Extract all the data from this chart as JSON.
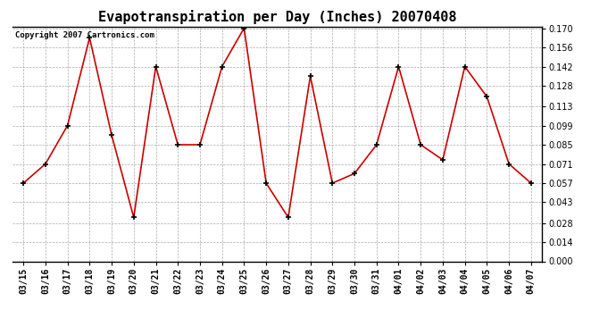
{
  "title": "Evapotranspiration per Day (Inches) 20070408",
  "copyright_text": "Copyright 2007 Cartronics.com",
  "dates": [
    "03/15",
    "03/16",
    "03/17",
    "03/18",
    "03/19",
    "03/20",
    "03/21",
    "03/22",
    "03/23",
    "03/24",
    "03/25",
    "03/26",
    "03/27",
    "03/28",
    "03/29",
    "03/30",
    "03/31",
    "04/01",
    "04/02",
    "04/03",
    "04/04",
    "04/05",
    "04/06",
    "04/07"
  ],
  "values": [
    0.057,
    0.071,
    0.099,
    0.163,
    0.092,
    0.032,
    0.142,
    0.085,
    0.085,
    0.142,
    0.17,
    0.057,
    0.032,
    0.135,
    0.057,
    0.064,
    0.085,
    0.142,
    0.085,
    0.074,
    0.142,
    0.12,
    0.071,
    0.057
  ],
  "line_color": "#cc0000",
  "marker_color": "#000000",
  "bg_color": "#ffffff",
  "plot_bg_color": "#ffffff",
  "grid_color": "#aaaaaa",
  "ylim": [
    0.0,
    0.17
  ],
  "yticks": [
    0.0,
    0.014,
    0.028,
    0.043,
    0.057,
    0.071,
    0.085,
    0.099,
    0.113,
    0.128,
    0.142,
    0.156,
    0.17
  ],
  "title_fontsize": 11,
  "tick_fontsize": 7,
  "copyright_fontsize": 6.5,
  "ylabel_fontweight": "bold"
}
